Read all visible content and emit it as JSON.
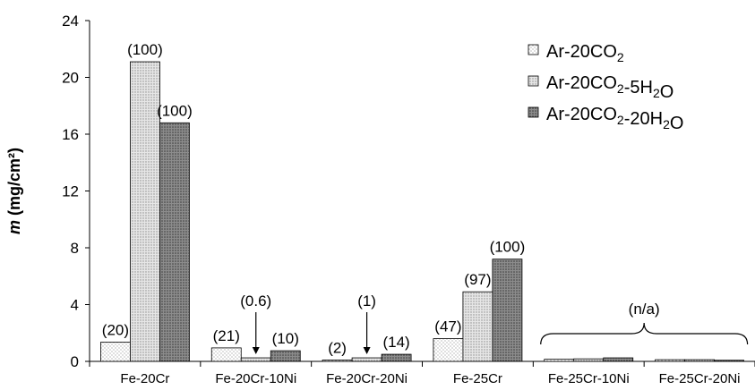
{
  "chart_data": {
    "type": "bar",
    "ylabel_var": "m",
    "ylabel_unit": "(mg/cm²)",
    "ylim": [
      0,
      24
    ],
    "yticks": [
      "0",
      "4",
      "8",
      "12",
      "16",
      "20",
      "24"
    ],
    "categories": [
      "Fe-20Cr",
      "Fe-20Cr-10Ni",
      "Fe-20Cr-20Ni",
      "Fe-25Cr",
      "Fe-25Cr-10Ni",
      "Fe-25Cr-20Ni"
    ],
    "series": [
      {
        "name": "Ar-20CO2",
        "legend_parts": [
          [
            "Ar-20CO",
            ""
          ],
          [
            "2",
            "sub"
          ]
        ],
        "values": [
          1.35,
          0.95,
          0.1,
          1.6,
          0.15,
          0.12
        ],
        "color": "#ffffff",
        "labels": [
          "(20)",
          "(21)",
          "(2)",
          "(47)",
          "",
          ""
        ]
      },
      {
        "name": "Ar-20CO2-5H2O",
        "legend_parts": [
          [
            "Ar-20CO",
            ""
          ],
          [
            "2",
            "sub"
          ],
          [
            "-5H",
            ""
          ],
          [
            "2",
            "sub"
          ],
          [
            "O",
            ""
          ]
        ],
        "values": [
          21.1,
          0.25,
          0.25,
          4.9,
          0.18,
          0.12
        ],
        "color": "#d9d9d9",
        "labels": [
          "(100)",
          "(0.6)",
          "(1)",
          "(97)",
          "",
          ""
        ]
      },
      {
        "name": "Ar-20CO2-20H2O",
        "legend_parts": [
          [
            "Ar-20CO",
            ""
          ],
          [
            "2",
            "sub"
          ],
          [
            "-20H",
            ""
          ],
          [
            "2",
            "sub"
          ],
          [
            "O",
            ""
          ]
        ],
        "values": [
          16.8,
          0.75,
          0.5,
          7.2,
          0.25,
          0.08
        ],
        "color": "#7f7f7f",
        "labels": [
          "(100)",
          "(10)",
          "(14)",
          "(100)",
          "",
          ""
        ]
      }
    ],
    "group_annotation": "(n/a)",
    "legend_position": "top-right",
    "grid": false
  }
}
